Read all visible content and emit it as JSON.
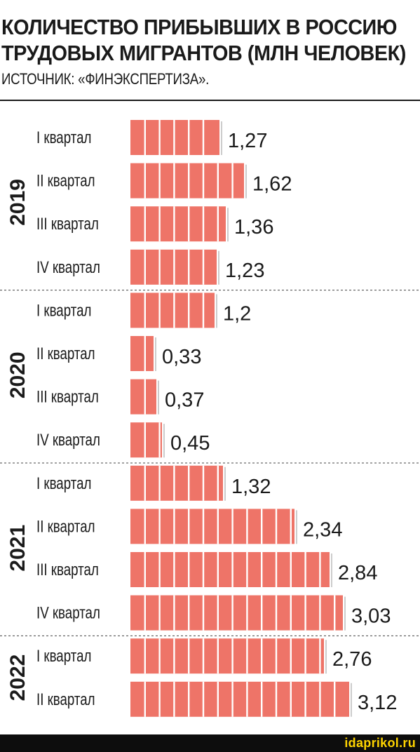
{
  "chart_data": {
    "type": "bar",
    "orientation": "horizontal",
    "title_lines": [
      "КОЛИЧЕСТВО ПРИБЫВШИХ В РОССИЮ",
      "ТРУДОВЫХ МИГРАНТОВ (МЛН ЧЕЛОВЕК)"
    ],
    "subtitle": "ИСТОЧНИК: «ФИНЭКСПЕРТИЗА».",
    "bar_color": "#ee7468",
    "groups": [
      {
        "label": "2019",
        "bars": [
          {
            "label": "I  квартал",
            "value": 1.27,
            "value_label": "1,27"
          },
          {
            "label": "II квартал",
            "value": 1.62,
            "value_label": "1,62"
          },
          {
            "label": "III квартал",
            "value": 1.36,
            "value_label": "1,36"
          },
          {
            "label": "IV квартал",
            "value": 1.23,
            "value_label": "1,23"
          }
        ]
      },
      {
        "label": "2020",
        "bars": [
          {
            "label": "I  квартал",
            "value": 1.2,
            "value_label": "1,2"
          },
          {
            "label": "II квартал",
            "value": 0.33,
            "value_label": "0,33"
          },
          {
            "label": "III квартал",
            "value": 0.37,
            "value_label": "0,37"
          },
          {
            "label": "IV квартал",
            "value": 0.45,
            "value_label": "0,45"
          }
        ]
      },
      {
        "label": "2021",
        "bars": [
          {
            "label": "I  квартал",
            "value": 1.32,
            "value_label": "1,32"
          },
          {
            "label": "II квартал",
            "value": 2.34,
            "value_label": "2,34"
          },
          {
            "label": "III квартал",
            "value": 2.84,
            "value_label": "2,84"
          },
          {
            "label": "IV квартал",
            "value": 3.03,
            "value_label": "3,03"
          }
        ]
      },
      {
        "label": "2022",
        "bars": [
          {
            "label": "I  квартал",
            "value": 2.76,
            "value_label": "2,76"
          },
          {
            "label": "II квартал",
            "value": 3.12,
            "value_label": "3,12"
          }
        ]
      }
    ]
  },
  "watermark": "idaprikol.ru"
}
